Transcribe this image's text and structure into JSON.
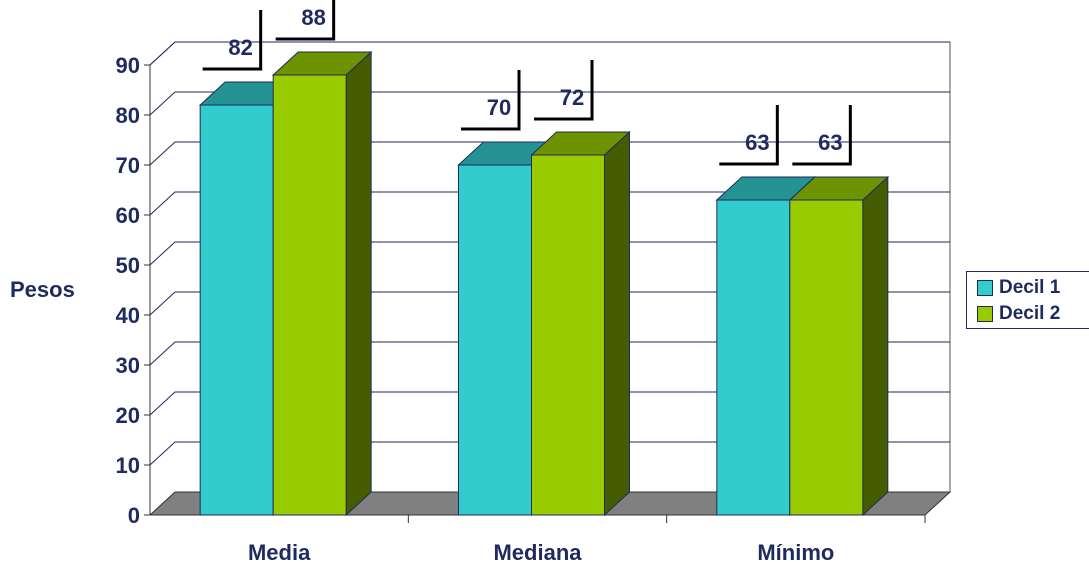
{
  "chart_data": {
    "type": "bar",
    "categories": [
      "Media",
      "Mediana",
      "Mínimo"
    ],
    "series": [
      {
        "name": "Decil 1",
        "values": [
          82,
          70,
          63
        ],
        "color": "#33cccc"
      },
      {
        "name": "Decil 2",
        "values": [
          88,
          72,
          63
        ],
        "color": "#99cc00"
      }
    ],
    "title": "",
    "xlabel": "",
    "ylabel": "Pesos",
    "ylim": [
      0,
      90
    ],
    "yticks": [
      0,
      10,
      20,
      30,
      40,
      50,
      60,
      70,
      80,
      90
    ],
    "grid": true,
    "three_d": true,
    "legend_position": "right",
    "floor_color": "#808080",
    "text_color": "#1f2a5e"
  }
}
